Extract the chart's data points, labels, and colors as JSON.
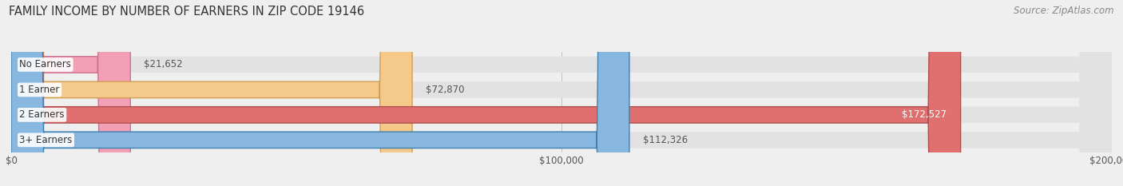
{
  "title": "FAMILY INCOME BY NUMBER OF EARNERS IN ZIP CODE 19146",
  "source": "Source: ZipAtlas.com",
  "categories": [
    "No Earners",
    "1 Earner",
    "2 Earners",
    "3+ Earners"
  ],
  "values": [
    21652,
    72870,
    172527,
    112326
  ],
  "bar_colors": [
    "#f2a0b5",
    "#f5c98a",
    "#e07070",
    "#88b8e0"
  ],
  "bar_edge_colors": [
    "#d07090",
    "#d0a050",
    "#b05050",
    "#4080b0"
  ],
  "label_colors": [
    "#555555",
    "#555555",
    "#ffffff",
    "#555555"
  ],
  "xlim": [
    0,
    200000
  ],
  "background_color": "#efefef",
  "bar_bg_color": "#e2e2e2",
  "title_fontsize": 10.5,
  "source_fontsize": 8.5,
  "tick_fontsize": 8.5,
  "label_fontsize": 8.5,
  "cat_fontsize": 8.5,
  "bar_height": 0.65,
  "fig_width": 14.06,
  "fig_height": 2.33
}
